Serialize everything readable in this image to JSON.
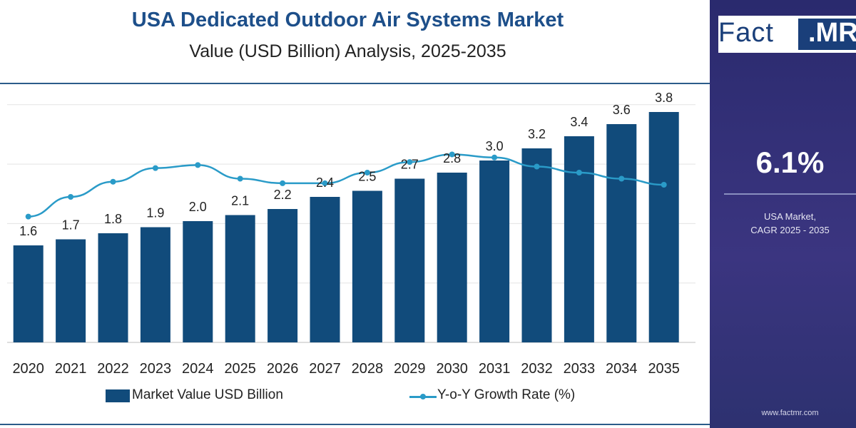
{
  "colors": {
    "bar": "#114b7b",
    "line": "#2a9bc8",
    "title": "#1d4f8a",
    "sidebar": "#2f2f75",
    "grid": "#e3e3e3"
  },
  "header": {
    "title": "USA Dedicated Outdoor Air Systems Market",
    "subtitle": "Value (USD Billion) Analysis, 2025-2035"
  },
  "sidebar": {
    "logo_main": "Fact",
    "logo_accent": ".MR",
    "cagr_value": "6.1%",
    "cagr_caption_line1": "USA Market,",
    "cagr_caption_line2": "CAGR 2025 - 2035",
    "website": "www.factmr.com"
  },
  "chart_data": {
    "type": "bar",
    "categories": [
      "2020",
      "2021",
      "2022",
      "2023",
      "2024",
      "2025",
      "2026",
      "2027",
      "2028",
      "2029",
      "2030",
      "2031",
      "2032",
      "2033",
      "2034",
      "2035"
    ],
    "series": [
      {
        "name": "Market Value USD Billion",
        "type": "bar",
        "values": [
          1.6,
          1.7,
          1.8,
          1.9,
          2.0,
          2.1,
          2.2,
          2.4,
          2.5,
          2.7,
          2.8,
          3.0,
          3.2,
          3.4,
          3.6,
          3.8
        ],
        "labels": [
          "1.6",
          "1.7",
          "1.8",
          "1.9",
          "2.0",
          "2.1",
          "2.2",
          "2.4",
          "2.5",
          "2.7",
          "2.8",
          "3.0",
          "3.2",
          "3.4",
          "3.6",
          "3.8"
        ]
      },
      {
        "name": "Y-o-Y Growth Rate (%)",
        "type": "line",
        "values": [
          4.3,
          5.6,
          6.6,
          7.5,
          7.7,
          6.8,
          6.5,
          6.5,
          7.2,
          7.9,
          8.4,
          8.2,
          7.6,
          7.2,
          6.8,
          6.4
        ]
      }
    ],
    "ylim": [
      0,
      4.0
    ],
    "y2lim": [
      -4,
      12
    ],
    "grid": true,
    "legend": "bottom"
  }
}
